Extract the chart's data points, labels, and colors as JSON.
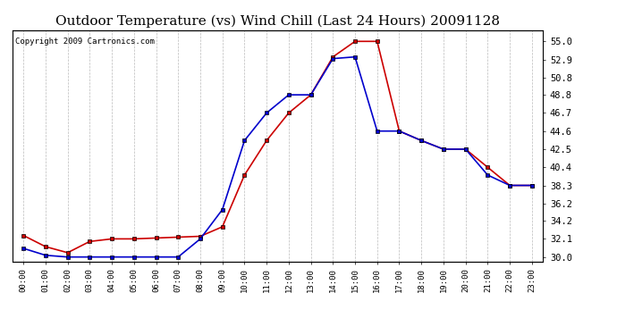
{
  "title": "Outdoor Temperature (vs) Wind Chill (Last 24 Hours) 20091128",
  "copyright": "Copyright 2009 Cartronics.com",
  "x_labels": [
    "00:00",
    "01:00",
    "02:00",
    "03:00",
    "04:00",
    "05:00",
    "06:00",
    "07:00",
    "08:00",
    "09:00",
    "10:00",
    "11:00",
    "12:00",
    "13:00",
    "14:00",
    "15:00",
    "16:00",
    "17:00",
    "18:00",
    "19:00",
    "20:00",
    "21:00",
    "22:00",
    "23:00"
  ],
  "outdoor_temp": [
    32.5,
    31.2,
    30.5,
    31.8,
    32.1,
    32.1,
    32.2,
    32.3,
    32.4,
    33.5,
    39.5,
    43.5,
    46.7,
    48.8,
    53.2,
    55.0,
    55.0,
    44.6,
    43.5,
    42.5,
    42.5,
    40.4,
    38.3,
    38.3
  ],
  "wind_chill": [
    31.0,
    30.2,
    30.0,
    30.0,
    30.0,
    30.0,
    30.0,
    30.0,
    32.1,
    35.5,
    43.5,
    46.7,
    48.8,
    48.8,
    53.0,
    53.2,
    44.6,
    44.6,
    43.5,
    42.5,
    42.5,
    39.5,
    38.3,
    38.3
  ],
  "temp_color": "#cc0000",
  "wc_color": "#0000cc",
  "marker": "s",
  "marker_size": 3,
  "ylim": [
    29.5,
    56.3
  ],
  "yticks": [
    30.0,
    32.1,
    34.2,
    36.2,
    38.3,
    40.4,
    42.5,
    44.6,
    46.7,
    48.8,
    50.8,
    52.9,
    55.0
  ],
  "yticklabels": [
    "30.0",
    "32.1",
    "34.2",
    "36.2",
    "38.3",
    "40.4",
    "42.5",
    "44.6",
    "46.7",
    "48.8",
    "50.8",
    "52.9",
    "55.0"
  ],
  "bg_color": "#ffffff",
  "grid_color": "#bbbbbb",
  "title_fontsize": 11,
  "copyright_fontsize": 6.5
}
